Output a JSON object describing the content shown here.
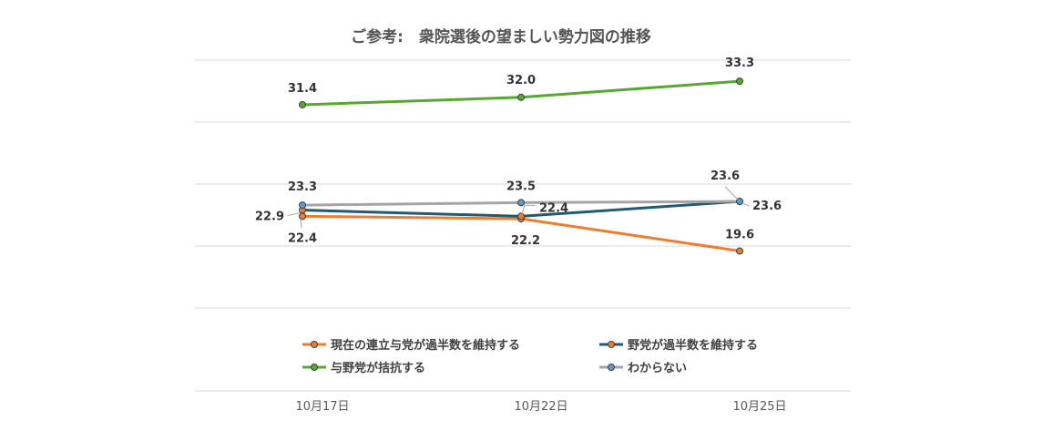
{
  "chart_data": {
    "type": "line",
    "title": "ご参考:　衆院選後の望ましい勢力図の推移",
    "categories": [
      "10月17日",
      "10月22日",
      "10月25日"
    ],
    "ylim": [
      15,
      35
    ],
    "grid": true,
    "legend": "bottom",
    "series": [
      {
        "name": "現在の連立与党が過半数を維持する",
        "color": "#ed7d31",
        "marker": "#ed7d31",
        "values": [
          22.4,
          22.2,
          19.6
        ],
        "labels": [
          "22.4",
          "22.2",
          "19.6"
        ]
      },
      {
        "name": "野党が過半数を維持する",
        "color": "#1f5c74",
        "marker": "#ed7d31",
        "values": [
          22.9,
          22.4,
          23.6
        ],
        "labels": [
          "22.9",
          "22.4",
          "23.6"
        ]
      },
      {
        "name": "与野党が拮抗する",
        "color": "#57a832",
        "marker": "#57a832",
        "values": [
          31.4,
          32.0,
          33.3
        ],
        "labels": [
          "31.4",
          "32.0",
          "33.3"
        ]
      },
      {
        "name": "わからない",
        "color": "#a5a5a5",
        "marker": "#5b9bd5",
        "values": [
          23.3,
          23.5,
          23.6
        ],
        "labels": [
          "23.3",
          "23.5",
          "23.6"
        ]
      }
    ]
  }
}
